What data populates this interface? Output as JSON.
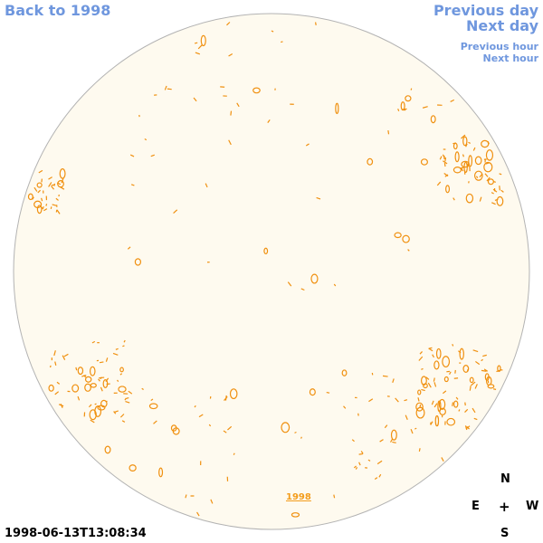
{
  "nav": {
    "back": "Back to 1998",
    "previous_day": "Previous day",
    "next_day": "Next day",
    "previous_hour": "Previous hour",
    "next_hour": "Next hour"
  },
  "year_link": "1998",
  "timestamp": "1998-06-13T13:08:34",
  "compass": {
    "north": "N",
    "east": "E",
    "center": "+",
    "west": "W",
    "south": "S"
  },
  "colors": {
    "disk_fill": "#fefaef",
    "disk_edge": "#b3b3b3",
    "contour": "#f0900f",
    "link": "#6f97de"
  }
}
